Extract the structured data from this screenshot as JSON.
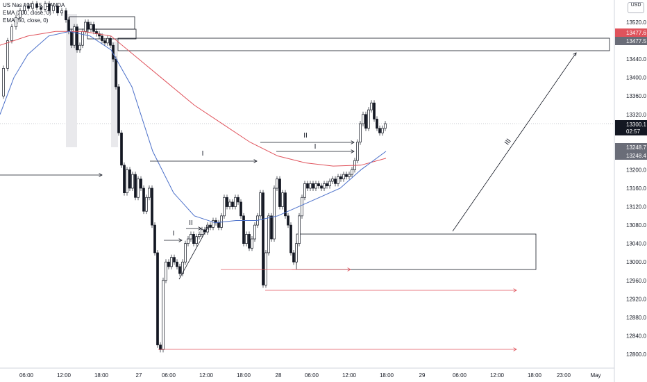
{
  "legend": {
    "symbol": "US Nas 100, 15, OANDA",
    "ema1": "EMA (200, close, 0)",
    "ema2": "EMA (50, close, 0)"
  },
  "currency": "USD",
  "colors": {
    "up": "#131722",
    "down": "#131722",
    "ema200": "#e0535c",
    "ema50": "#4a6fc9",
    "badge_red": "#e0535c",
    "badge_gray": "#6a6d78",
    "badge_dark": "#131722",
    "redline": "#e0535c"
  },
  "chart_data": {
    "type": "candlestick",
    "ylim": [
      12780,
      13560
    ],
    "y_ticks": [
      13520.0,
      13480.0,
      13440.0,
      13400.0,
      13360.0,
      13320.0,
      13280.0,
      13240.0,
      13200.0,
      13160.0,
      13120.0,
      13080.0,
      13040.0,
      13000.0,
      12960.0,
      12920.0,
      12880.0,
      12840.0,
      12800.0
    ],
    "y_tick_labels": [
      "13520.0",
      "13480.0",
      "13440.0",
      "13400.0",
      "13360.0",
      "13320.0",
      "13280.0",
      "13240.0",
      "13200.0",
      "13160.0",
      "13120.0",
      "13080.0",
      "13040.0",
      "13000.0",
      "12960.0",
      "12920.0",
      "12880.0",
      "12840.0",
      "12800.0"
    ],
    "x_ticks": [
      "06:00",
      "12:00",
      "18:00",
      "27",
      "06:00",
      "12:00",
      "18:00",
      "28",
      "06:00",
      "12:00",
      "18:00",
      "29",
      "06:00",
      "12:00",
      "18:00",
      "23:00",
      "May"
    ],
    "price_badges": [
      {
        "value": "13477.6",
        "price": 13477.6,
        "color": "badge_red"
      },
      {
        "value": "13477.5",
        "price": 13477.5,
        "color": "badge_gray"
      },
      {
        "value": "13300.1",
        "sub": "02:57",
        "price": 13300.1,
        "color": "badge_dark"
      },
      {
        "value": "13248.7",
        "price": 13248.7,
        "color": "badge_gray"
      },
      {
        "value": "13248.4",
        "price": 13248.4,
        "color": "badge_gray"
      }
    ],
    "path": [
      [
        0,
        13360
      ],
      [
        6,
        13420
      ],
      [
        12,
        13480
      ],
      [
        18,
        13510
      ],
      [
        24,
        13530
      ],
      [
        30,
        13545
      ],
      [
        36,
        13555
      ],
      [
        42,
        13550
      ],
      [
        48,
        13560
      ],
      [
        54,
        13552
      ],
      [
        60,
        13548
      ],
      [
        66,
        13560
      ],
      [
        72,
        13545
      ],
      [
        78,
        13555
      ],
      [
        84,
        13540
      ],
      [
        90,
        13545
      ],
      [
        96,
        13525
      ],
      [
        100,
        13500
      ],
      [
        104,
        13470
      ],
      [
        108,
        13510
      ],
      [
        112,
        13460
      ],
      [
        116,
        13470
      ],
      [
        120,
        13500
      ],
      [
        124,
        13520
      ],
      [
        128,
        13505
      ],
      [
        132,
        13515
      ],
      [
        136,
        13500
      ],
      [
        140,
        13495
      ],
      [
        144,
        13490
      ],
      [
        148,
        13480
      ],
      [
        152,
        13475
      ],
      [
        156,
        13485
      ],
      [
        160,
        13470
      ],
      [
        164,
        13440
      ],
      [
        168,
        13380
      ],
      [
        172,
        13280
      ],
      [
        176,
        13210
      ],
      [
        180,
        13150
      ],
      [
        184,
        13200
      ],
      [
        188,
        13160
      ],
      [
        192,
        13190
      ],
      [
        196,
        13140
      ],
      [
        200,
        13180
      ],
      [
        204,
        13160
      ],
      [
        208,
        13110
      ],
      [
        212,
        13140
      ],
      [
        216,
        13160
      ],
      [
        220,
        13080
      ],
      [
        224,
        13020
      ],
      [
        228,
        12820
      ],
      [
        232,
        12810
      ],
      [
        236,
        12960
      ],
      [
        240,
        13000
      ],
      [
        244,
        12990
      ],
      [
        248,
        13010
      ],
      [
        252,
        13000
      ],
      [
        256,
        12990
      ],
      [
        260,
        12975
      ],
      [
        264,
        13000
      ],
      [
        268,
        13040
      ],
      [
        272,
        13050
      ],
      [
        276,
        13060
      ],
      [
        280,
        13040
      ],
      [
        284,
        13055
      ],
      [
        288,
        13060
      ],
      [
        292,
        13070
      ],
      [
        296,
        13065
      ],
      [
        300,
        13080
      ],
      [
        304,
        13075
      ],
      [
        308,
        13090
      ],
      [
        312,
        13085
      ],
      [
        316,
        13075
      ],
      [
        320,
        13100
      ],
      [
        324,
        13140
      ],
      [
        328,
        13120
      ],
      [
        332,
        13130
      ],
      [
        336,
        13120
      ],
      [
        340,
        13140
      ],
      [
        344,
        13130
      ],
      [
        348,
        13100
      ],
      [
        352,
        13040
      ],
      [
        356,
        13060
      ],
      [
        360,
        13030
      ],
      [
        364,
        13050
      ],
      [
        368,
        13080
      ],
      [
        372,
        13100
      ],
      [
        376,
        13150
      ],
      [
        380,
        12950
      ],
      [
        384,
        13020
      ],
      [
        388,
        13100
      ],
      [
        392,
        13050
      ],
      [
        396,
        13160
      ],
      [
        400,
        13180
      ],
      [
        404,
        13120
      ],
      [
        408,
        13150
      ],
      [
        412,
        13100
      ],
      [
        416,
        13080
      ],
      [
        420,
        13020
      ],
      [
        424,
        13000
      ],
      [
        428,
        13040
      ],
      [
        432,
        13100
      ],
      [
        436,
        13140
      ],
      [
        440,
        13170
      ],
      [
        444,
        13160
      ],
      [
        448,
        13170
      ],
      [
        452,
        13160
      ],
      [
        456,
        13170
      ],
      [
        460,
        13165
      ],
      [
        464,
        13160
      ],
      [
        468,
        13170
      ],
      [
        472,
        13165
      ],
      [
        476,
        13175
      ],
      [
        480,
        13180
      ],
      [
        484,
        13170
      ],
      [
        488,
        13185
      ],
      [
        492,
        13180
      ],
      [
        496,
        13190
      ],
      [
        500,
        13185
      ],
      [
        504,
        13190
      ],
      [
        508,
        13200
      ],
      [
        512,
        13220
      ],
      [
        516,
        13260
      ],
      [
        520,
        13300
      ],
      [
        524,
        13320
      ],
      [
        528,
        13290
      ],
      [
        532,
        13330
      ],
      [
        536,
        13345
      ],
      [
        540,
        13310
      ],
      [
        544,
        13290
      ],
      [
        548,
        13280
      ],
      [
        552,
        13290
      ],
      [
        556,
        13300
      ]
    ],
    "ema200": [
      [
        0,
        13470
      ],
      [
        40,
        13490
      ],
      [
        80,
        13500
      ],
      [
        120,
        13500
      ],
      [
        160,
        13490
      ],
      [
        200,
        13440
      ],
      [
        240,
        13390
      ],
      [
        280,
        13340
      ],
      [
        320,
        13300
      ],
      [
        360,
        13260
      ],
      [
        400,
        13230
      ],
      [
        440,
        13215
      ],
      [
        480,
        13208
      ],
      [
        520,
        13210
      ],
      [
        556,
        13225
      ]
    ],
    "ema50": [
      [
        0,
        13320
      ],
      [
        20,
        13400
      ],
      [
        40,
        13450
      ],
      [
        70,
        13490
      ],
      [
        100,
        13500
      ],
      [
        130,
        13490
      ],
      [
        160,
        13460
      ],
      [
        190,
        13380
      ],
      [
        220,
        13240
      ],
      [
        250,
        13150
      ],
      [
        280,
        13100
      ],
      [
        310,
        13085
      ],
      [
        340,
        13090
      ],
      [
        370,
        13090
      ],
      [
        400,
        13100
      ],
      [
        430,
        13120
      ],
      [
        460,
        13140
      ],
      [
        490,
        13160
      ],
      [
        520,
        13200
      ],
      [
        556,
        13240
      ]
    ],
    "annotations": {
      "labels": [
        "I",
        "II",
        "I",
        "I",
        "II",
        "III"
      ]
    }
  }
}
